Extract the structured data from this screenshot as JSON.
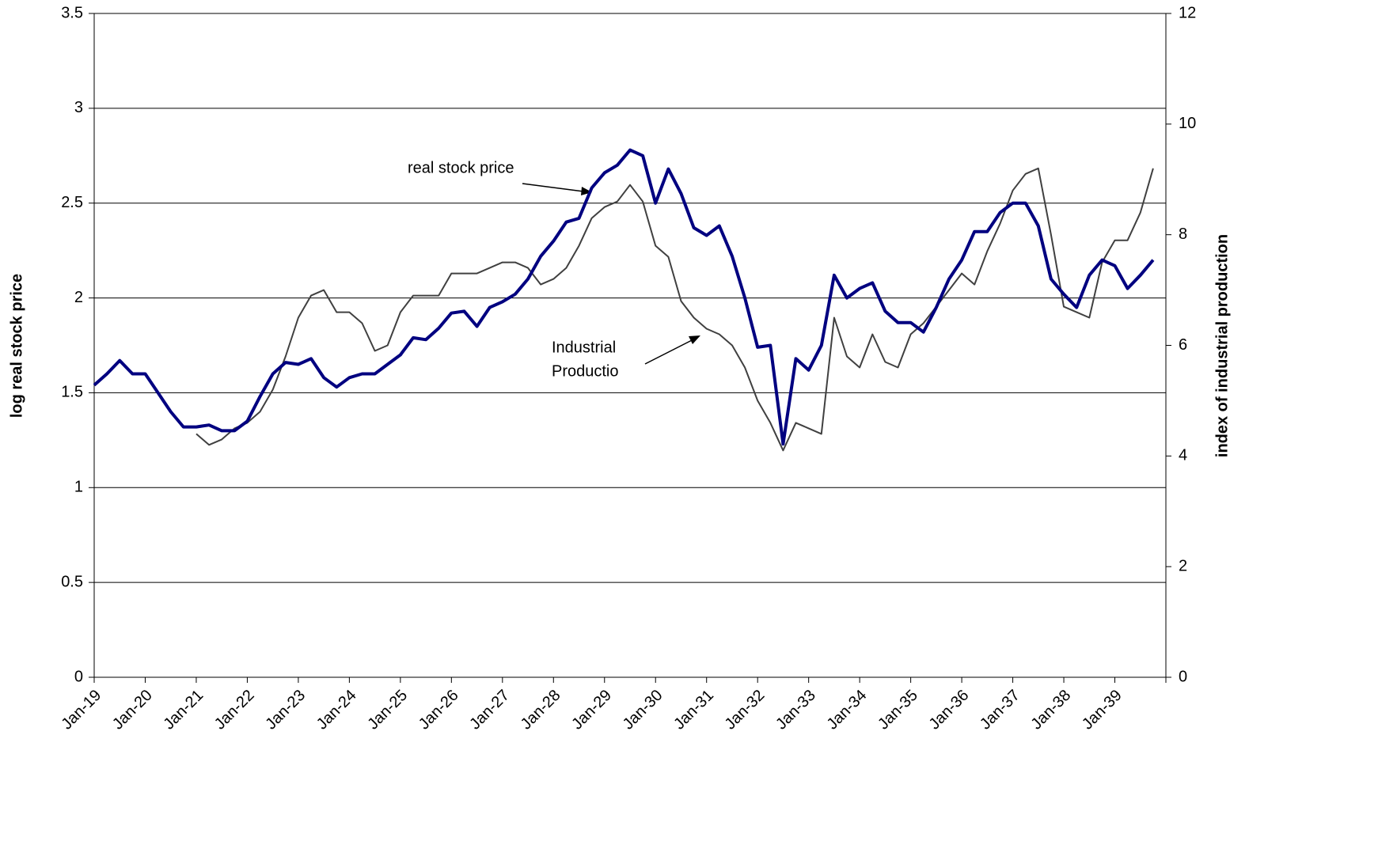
{
  "chart_data": {
    "type": "line",
    "y_label": "log real stock price",
    "y2_label": "index of industrial production",
    "categories": [
      "Jan-19",
      null,
      null,
      null,
      "Jan-20",
      null,
      null,
      null,
      "Jan-21",
      null,
      null,
      null,
      "Jan-22",
      null,
      null,
      null,
      "Jan-23",
      null,
      null,
      null,
      "Jan-24",
      null,
      null,
      null,
      "Jan-25",
      null,
      null,
      null,
      "Jan-26",
      null,
      null,
      null,
      "Jan-27",
      null,
      null,
      null,
      "Jan-28",
      null,
      null,
      null,
      "Jan-29",
      null,
      null,
      null,
      "Jan-30",
      null,
      null,
      null,
      "Jan-31",
      null,
      null,
      null,
      "Jan-32",
      null,
      null,
      null,
      "Jan-33",
      null,
      null,
      null,
      "Jan-34",
      null,
      null,
      null,
      "Jan-35",
      null,
      null,
      null,
      "Jan-36",
      null,
      null,
      null,
      "Jan-37",
      null,
      null,
      null,
      "Jan-38",
      null,
      null,
      null,
      "Jan-39",
      null,
      null,
      null
    ],
    "series": [
      {
        "color": "#000080",
        "axis": "y",
        "values": [
          1.54,
          1.6,
          1.67,
          1.6,
          1.6,
          1.5,
          1.4,
          1.32,
          1.32,
          1.33,
          1.3,
          1.3,
          1.35,
          1.48,
          1.6,
          1.66,
          1.65,
          1.68,
          1.58,
          1.53,
          1.58,
          1.6,
          1.6,
          1.65,
          1.7,
          1.79,
          1.78,
          1.84,
          1.92,
          1.93,
          1.85,
          1.95,
          1.98,
          2.02,
          2.1,
          2.22,
          2.3,
          2.4,
          2.42,
          2.58,
          2.66,
          2.7,
          2.78,
          2.75,
          2.5,
          2.68,
          2.55,
          2.37,
          2.33,
          2.38,
          2.22,
          2.0,
          1.74,
          1.75,
          1.23,
          1.68,
          1.62,
          1.75,
          2.12,
          2.0,
          2.05,
          2.08,
          1.93,
          1.87,
          1.87,
          1.82,
          1.95,
          2.1,
          2.2,
          2.35,
          2.35,
          2.45,
          2.5,
          2.5,
          2.38,
          2.1,
          2.02,
          1.95,
          2.12,
          2.2,
          2.17,
          2.05,
          2.12,
          2.2
        ]
      },
      {
        "color": "#404040",
        "axis": "y2",
        "values": [
          null,
          null,
          null,
          null,
          null,
          null,
          null,
          null,
          4.4,
          4.2,
          4.3,
          4.5,
          4.6,
          4.8,
          5.2,
          5.8,
          6.5,
          6.9,
          7.0,
          6.6,
          6.6,
          6.4,
          5.9,
          6.0,
          6.6,
          6.9,
          6.9,
          6.9,
          7.3,
          7.3,
          7.3,
          7.4,
          7.5,
          7.5,
          7.4,
          7.1,
          7.2,
          7.4,
          7.8,
          8.3,
          8.5,
          8.6,
          8.9,
          8.6,
          7.8,
          7.6,
          6.8,
          6.5,
          6.3,
          6.2,
          6.0,
          5.6,
          5.0,
          4.6,
          4.1,
          4.6,
          4.5,
          4.4,
          6.5,
          5.8,
          5.6,
          6.2,
          5.7,
          5.6,
          6.2,
          6.4,
          6.7,
          7.0,
          7.3,
          7.1,
          7.7,
          8.2,
          8.8,
          9.1,
          9.2,
          8.0,
          6.7,
          6.6,
          6.5,
          7.5,
          7.9,
          7.9,
          8.4,
          9.2
        ]
      }
    ],
    "ylim": [
      0,
      3.5
    ],
    "yticks": [
      0,
      0.5,
      1,
      1.5,
      2,
      2.5,
      3,
      3.5
    ],
    "y2lim": [
      0,
      12
    ],
    "y2ticks": [
      0,
      2,
      4,
      6,
      8,
      10,
      12
    ],
    "grid": true,
    "annotations": [
      {
        "lines": [
          "real stock price"
        ]
      },
      {
        "lines": [
          "Industrial",
          "Productio"
        ]
      }
    ]
  }
}
